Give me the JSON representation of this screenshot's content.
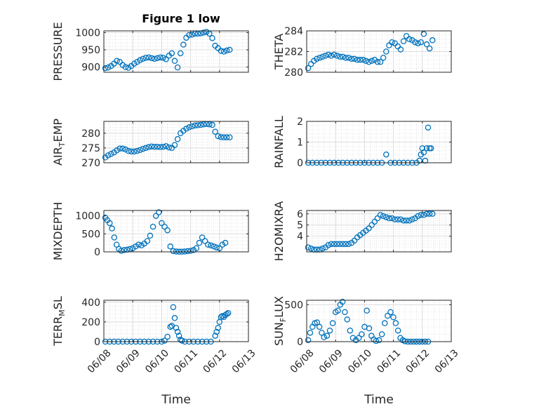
{
  "figure": {
    "title": "Figure 1 low",
    "marker_color": "#0072bd"
  },
  "chart_data": [
    {
      "type": "scatter",
      "ylabel": "PRESSURE",
      "ylabel_sub": "",
      "ylim": [
        885,
        1005
      ],
      "yticks": [
        900,
        950,
        1000
      ],
      "xlim": [
        0,
        5
      ],
      "xticks": [
        0,
        1,
        2,
        3,
        4,
        5
      ],
      "xtick_labels": [
        "",
        "",
        "",
        "",
        "",
        ""
      ],
      "x": [
        0.05,
        0.15,
        0.25,
        0.35,
        0.45,
        0.55,
        0.65,
        0.75,
        0.85,
        0.95,
        1.05,
        1.15,
        1.25,
        1.35,
        1.45,
        1.55,
        1.65,
        1.75,
        1.85,
        1.95,
        2.05,
        2.15,
        2.25,
        2.35,
        2.45,
        2.55,
        2.65,
        2.75,
        2.85,
        2.95,
        3.05,
        3.15,
        3.25,
        3.35,
        3.45,
        3.55,
        3.65,
        3.75,
        3.85,
        3.95,
        4.05,
        4.15,
        4.25,
        4.35
      ],
      "y": [
        897,
        899,
        903,
        910,
        918,
        915,
        906,
        900,
        898,
        903,
        910,
        915,
        920,
        924,
        927,
        928,
        926,
        924,
        926,
        928,
        927,
        923,
        933,
        940,
        918,
        899,
        940,
        965,
        985,
        993,
        994,
        997,
        997,
        998,
        1000,
        1002,
        997,
        984,
        962,
        955,
        947,
        945,
        948,
        950
      ],
      "grid": true,
      "minor_grid": true
    },
    {
      "type": "scatter",
      "ylabel": "THETA",
      "ylabel_sub": "",
      "ylim": [
        280,
        284
      ],
      "yticks": [
        280,
        282,
        284
      ],
      "xlim": [
        0,
        5
      ],
      "xticks": [
        0,
        1,
        2,
        3,
        4,
        5
      ],
      "xtick_labels": [
        "",
        "",
        "",
        "",
        "",
        ""
      ],
      "x": [
        0.05,
        0.15,
        0.25,
        0.35,
        0.45,
        0.55,
        0.65,
        0.75,
        0.85,
        0.95,
        1.05,
        1.15,
        1.25,
        1.35,
        1.45,
        1.55,
        1.65,
        1.75,
        1.85,
        1.95,
        2.05,
        2.15,
        2.25,
        2.35,
        2.45,
        2.55,
        2.65,
        2.75,
        2.85,
        2.95,
        3.05,
        3.15,
        3.25,
        3.35,
        3.45,
        3.55,
        3.65,
        3.75,
        3.85,
        3.95,
        4.05,
        4.15,
        4.25,
        4.35
      ],
      "y": [
        280.4,
        280.8,
        281.1,
        281.3,
        281.4,
        281.5,
        281.6,
        281.7,
        281.6,
        281.7,
        281.6,
        281.5,
        281.5,
        281.4,
        281.4,
        281.3,
        281.3,
        281.2,
        281.2,
        281.2,
        281.1,
        281.0,
        281.1,
        281.2,
        281.0,
        281.0,
        281.4,
        282.0,
        282.6,
        282.9,
        282.8,
        282.5,
        282.2,
        283.0,
        283.5,
        283.2,
        283.1,
        282.9,
        282.8,
        282.9,
        283.7,
        282.7,
        282.3,
        283.1
      ],
      "grid": true,
      "minor_grid": true
    },
    {
      "type": "scatter",
      "ylabel": "AIR",
      "ylabel_sub": "T",
      "ylabel_tail": "EMP",
      "ylim": [
        270,
        284
      ],
      "yticks": [
        270,
        275,
        280
      ],
      "xlim": [
        0,
        5
      ],
      "xticks": [
        0,
        1,
        2,
        3,
        4,
        5
      ],
      "xtick_labels": [
        "",
        "",
        "",
        "",
        "",
        ""
      ],
      "x": [
        0.05,
        0.15,
        0.25,
        0.35,
        0.45,
        0.55,
        0.65,
        0.75,
        0.85,
        0.95,
        1.05,
        1.15,
        1.25,
        1.35,
        1.45,
        1.55,
        1.65,
        1.75,
        1.85,
        1.95,
        2.05,
        2.15,
        2.25,
        2.35,
        2.45,
        2.55,
        2.65,
        2.75,
        2.85,
        2.95,
        3.05,
        3.15,
        3.25,
        3.35,
        3.45,
        3.55,
        3.65,
        3.75,
        3.85,
        3.95,
        4.05,
        4.15,
        4.25,
        4.35
      ],
      "y": [
        271.8,
        272.5,
        273.0,
        273.5,
        274.2,
        274.8,
        274.8,
        274.5,
        274.0,
        273.8,
        273.8,
        274.0,
        274.3,
        274.7,
        275.0,
        275.3,
        275.5,
        275.4,
        275.4,
        275.3,
        275.4,
        275.6,
        275.2,
        275.0,
        276.0,
        278.0,
        280.0,
        280.8,
        281.5,
        282.0,
        282.3,
        282.6,
        282.7,
        282.8,
        283.0,
        283.1,
        283.0,
        282.8,
        280.5,
        279.0,
        278.7,
        278.6,
        278.6,
        278.6
      ],
      "grid": true,
      "minor_grid": true
    },
    {
      "type": "scatter",
      "ylabel": "RAINFALL",
      "ylabel_sub": "",
      "ylim": [
        0,
        2
      ],
      "yticks": [
        0,
        1,
        2
      ],
      "xlim": [
        0,
        5
      ],
      "xticks": [
        0,
        1,
        2,
        3,
        4,
        5
      ],
      "xtick_labels": [
        "",
        "",
        "",
        "",
        "",
        ""
      ],
      "x": [
        0.05,
        0.2,
        0.35,
        0.5,
        0.65,
        0.8,
        0.95,
        1.1,
        1.25,
        1.4,
        1.55,
        1.7,
        1.85,
        2.0,
        2.15,
        2.3,
        2.45,
        2.6,
        2.75,
        2.9,
        3.05,
        3.2,
        3.35,
        3.5,
        3.65,
        3.8,
        3.9,
        3.95,
        4.0,
        4.05,
        4.1,
        4.15,
        4.2,
        4.25,
        4.3
      ],
      "y": [
        0,
        0,
        0,
        0,
        0,
        0,
        0,
        0,
        0,
        0,
        0,
        0,
        0,
        0,
        0,
        0,
        0,
        0,
        0.4,
        0,
        0,
        0,
        0,
        0,
        0,
        0,
        0.1,
        0.4,
        0.7,
        0.5,
        0.1,
        0.7,
        1.7,
        0.7,
        0.7
      ],
      "grid": true,
      "minor_grid": true
    },
    {
      "type": "scatter",
      "ylabel": "MIXDEPTH",
      "ylabel_sub": "",
      "ylim": [
        0,
        1150
      ],
      "yticks": [
        0,
        500,
        1000
      ],
      "xlim": [
        0,
        5
      ],
      "xticks": [
        0,
        1,
        2,
        3,
        4,
        5
      ],
      "xtick_labels": [
        "",
        "",
        "",
        "",
        "",
        ""
      ],
      "x": [
        0.05,
        0.12,
        0.2,
        0.28,
        0.36,
        0.44,
        0.52,
        0.6,
        0.7,
        0.8,
        0.9,
        1.0,
        1.1,
        1.2,
        1.3,
        1.4,
        1.5,
        1.6,
        1.7,
        1.8,
        1.9,
        2.0,
        2.1,
        2.2,
        2.3,
        2.4,
        2.5,
        2.6,
        2.7,
        2.8,
        2.9,
        3.0,
        3.1,
        3.2,
        3.3,
        3.4,
        3.5,
        3.6,
        3.7,
        3.8,
        3.9,
        4.0,
        4.1,
        4.2
      ],
      "y": [
        950,
        880,
        800,
        650,
        400,
        200,
        80,
        30,
        50,
        60,
        80,
        100,
        150,
        200,
        180,
        230,
        300,
        450,
        700,
        1000,
        1100,
        800,
        700,
        600,
        150,
        20,
        10,
        5,
        5,
        10,
        20,
        30,
        50,
        100,
        250,
        400,
        300,
        200,
        180,
        150,
        120,
        100,
        200,
        250
      ],
      "grid": true,
      "minor_grid": true
    },
    {
      "type": "scatter",
      "ylabel": "H2OMIXRA",
      "ylabel_sub": "",
      "ylim": [
        2.6,
        6.3
      ],
      "yticks": [
        4,
        5,
        6
      ],
      "xlim": [
        0,
        5
      ],
      "xticks": [
        0,
        1,
        2,
        3,
        4,
        5
      ],
      "xtick_labels": [
        "",
        "",
        "",
        "",
        "",
        ""
      ],
      "x": [
        0.05,
        0.15,
        0.25,
        0.35,
        0.45,
        0.55,
        0.65,
        0.75,
        0.85,
        0.95,
        1.05,
        1.15,
        1.25,
        1.35,
        1.45,
        1.55,
        1.65,
        1.75,
        1.85,
        1.95,
        2.05,
        2.15,
        2.25,
        2.35,
        2.45,
        2.55,
        2.65,
        2.75,
        2.85,
        2.95,
        3.05,
        3.15,
        3.25,
        3.35,
        3.45,
        3.55,
        3.65,
        3.75,
        3.85,
        3.95,
        4.05,
        4.15,
        4.25,
        4.35
      ],
      "y": [
        3.0,
        2.9,
        2.8,
        2.8,
        2.8,
        2.9,
        3.0,
        3.2,
        3.3,
        3.3,
        3.3,
        3.3,
        3.3,
        3.3,
        3.3,
        3.4,
        3.6,
        3.9,
        4.1,
        4.3,
        4.5,
        4.7,
        5.0,
        5.3,
        5.6,
        5.9,
        5.8,
        5.7,
        5.6,
        5.6,
        5.5,
        5.5,
        5.5,
        5.4,
        5.4,
        5.4,
        5.5,
        5.6,
        5.8,
        5.9,
        5.9,
        6.0,
        6.0,
        6.0
      ],
      "grid": true,
      "minor_grid": true
    },
    {
      "type": "scatter",
      "ylabel": "TERR",
      "ylabel_sub": "M",
      "ylabel_tail": "SL",
      "xlabel": "Time",
      "ylim": [
        0,
        420
      ],
      "yticks": [
        0,
        200,
        400
      ],
      "xlim": [
        0,
        5
      ],
      "xticks": [
        0,
        1,
        2,
        3,
        4,
        5
      ],
      "xtick_labels": [
        "06/08",
        "06/09",
        "06/10",
        "06/11",
        "06/12",
        "06/13"
      ],
      "x": [
        0.05,
        0.2,
        0.35,
        0.5,
        0.65,
        0.8,
        0.95,
        1.1,
        1.25,
        1.4,
        1.55,
        1.7,
        1.85,
        2.0,
        2.1,
        2.2,
        2.3,
        2.35,
        2.4,
        2.45,
        2.5,
        2.55,
        2.6,
        2.65,
        2.7,
        2.8,
        2.95,
        3.1,
        3.25,
        3.4,
        3.55,
        3.7,
        3.85,
        3.9,
        3.95,
        4.0,
        4.05,
        4.1,
        4.15,
        4.2,
        4.25,
        4.3
      ],
      "y": [
        0,
        0,
        0,
        0,
        0,
        0,
        0,
        0,
        0,
        0,
        0,
        0,
        0,
        0,
        10,
        50,
        150,
        160,
        350,
        240,
        140,
        100,
        60,
        20,
        10,
        0,
        0,
        0,
        0,
        0,
        0,
        0,
        60,
        100,
        140,
        200,
        250,
        260,
        250,
        270,
        280,
        290
      ],
      "grid": true,
      "minor_grid": true
    },
    {
      "type": "scatter",
      "ylabel": "SUN",
      "ylabel_sub": "F",
      "ylabel_tail": "LUX",
      "xlabel": "Time",
      "ylim": [
        0,
        560
      ],
      "yticks": [
        0,
        500
      ],
      "xlim": [
        0,
        5
      ],
      "xticks": [
        0,
        1,
        2,
        3,
        4,
        5
      ],
      "xtick_labels": [
        "06/08",
        "06/09",
        "06/10",
        "06/11",
        "06/12",
        "06/13"
      ],
      "x": [
        0.05,
        0.12,
        0.2,
        0.28,
        0.36,
        0.44,
        0.52,
        0.6,
        0.7,
        0.8,
        0.9,
        1.0,
        1.08,
        1.16,
        1.24,
        1.32,
        1.4,
        1.5,
        1.6,
        1.7,
        1.8,
        1.9,
        2.0,
        2.08,
        2.16,
        2.24,
        2.32,
        2.4,
        2.5,
        2.6,
        2.7,
        2.8,
        2.9,
        3.0,
        3.08,
        3.16,
        3.24,
        3.32,
        3.4,
        3.5,
        3.6,
        3.7,
        3.8,
        3.9,
        4.0,
        4.1,
        4.2
      ],
      "y": [
        20,
        120,
        200,
        250,
        260,
        200,
        120,
        60,
        80,
        150,
        250,
        400,
        420,
        500,
        540,
        400,
        300,
        150,
        50,
        20,
        50,
        100,
        200,
        420,
        180,
        80,
        30,
        10,
        20,
        100,
        250,
        350,
        400,
        330,
        250,
        150,
        50,
        20,
        5,
        0,
        0,
        0,
        0,
        0,
        0,
        0,
        0
      ],
      "grid": true,
      "minor_grid": true
    }
  ]
}
